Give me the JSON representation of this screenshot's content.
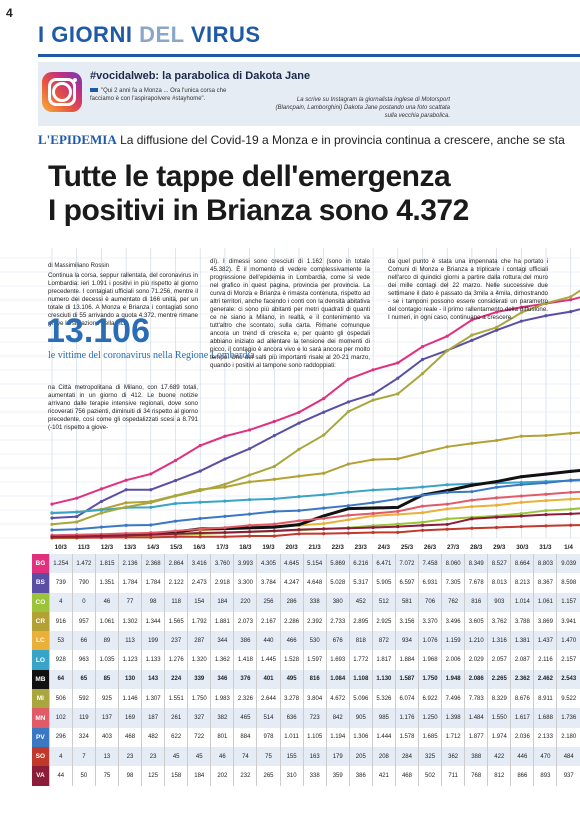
{
  "page_number": "4",
  "section": {
    "part1": "I GIORNI",
    "part2": "DEL",
    "part3": "VIRUS"
  },
  "social": {
    "headline": "#vocidalweb: la parabolica di Dakota Jane",
    "quote": "\"Qui 2 anni fa a Monza ... Ora l'unica corsa che facciamo è con l'aspirapolvere #stayhome\".",
    "caption": "La scrive su Instagram la giornalista inglese di Motorsport (Blancpain, Lamborghini) Dakota Jane postando una foto scattata sulla vecchia parabolica."
  },
  "kicker": {
    "label": "L'EPIDEMIA",
    "text": "La diffusione del Covid-19 a Monza e in provincia continua a crescere, anche se sta rallentando."
  },
  "headline": {
    "line1": "Tutte le tappe dell'emergenza",
    "line2": "I positivi in Brianza sono 4.372"
  },
  "byline": "di Massimiliano Rossin",
  "body": {
    "col1_top": "Continua la corsa, seppur rallentata, del coronavirus in Lombardia: ieri 1.091 i positivi in più rispetto al giorno precedente. I contagiati ufficiali sono 71.256, mentre il numero dei decessi è aumentato di 166 unità, per un totale di 13.106. A Monza e Brianza i contagiati sono cresciuti di 55 arrivando a quota 4.372, mentre rimane grave la situazione della vici-",
    "big_number": "13.106",
    "big_label": "le vittime del coronavirus nella Regione Lombardia",
    "col1_bottom": "na Città metropolitana di Milano, con 17.689 totali, aumentati in un giorno di 412. Le buone notizie arrivano dalle terapie intensive regionali, dove sono ricoverati 756 pazienti, diminuiti di 34 rispetto al giorno precedente, così come gli ospedalizzati scesi a 8.791 (-101 rispetto a giove-",
    "col2": "dì). I dimessi sono cresciuti di 1.162 (sono in totale 45.382). È il momento di vedere complessivamente la progressione dell'epidemia in Lombardia, come si vede nel grafico in quest pagina, provincia per provincia. La curva di Monza e Brianza è rimasta contenuta, rispetto ad altri territori, anche facendo i conti con la densità abitativa generale: ci sono più abitanti per metri quadrati di quanti ce ne siano a Milano, in realtà, e il contenimento va tutt'altro che scontato, sulla carta. Rimane comunque ancora un trend di crescita e, per quanto gli ospedali abbiano iniziato ad allentare la tensione dei momenti di picco, il contagio è ancora vivo e lo sarà ancora per molto tempo. Uno dei salti più importanti risale al 20-21 marzo, quando i positivi al tampone sono raddoppiati:",
    "col3": "da quel punto è stata una impennata che ha portato i Comuni di Monza e Brianza a triplicare i contagi ufficiali nell'arco di quindici giorni a partire dalla rottura del muro dei mille contagi del 22 marzo. Nelle successive due settimane il dato è passato da 3mila a 4mila, dimostrando - se i tamponi possono essere considerati un parametro del contagio reale - il primo rallentamento della diffusione. I numeri, in ogni caso, continuano a crescere."
  },
  "chart_data": {
    "type": "line",
    "categories": [
      "10/3",
      "11/3",
      "12/3",
      "13/3",
      "14/3",
      "15/3",
      "16/3",
      "17/3",
      "18/3",
      "19/3",
      "20/3",
      "21/3",
      "22/3",
      "23/3",
      "24/3",
      "25/3",
      "26/3",
      "27/3",
      "28/3",
      "29/3",
      "30/3",
      "31/3",
      "1/4"
    ],
    "series": [
      {
        "name": "BG",
        "color": "#e0307e",
        "values": [
          1254,
          1472,
          1815,
          2136,
          2368,
          2864,
          3416,
          3760,
          3993,
          4305,
          4645,
          5154,
          5869,
          6216,
          6471,
          7072,
          7458,
          8060,
          8349,
          8527,
          8664,
          8803,
          9039
        ]
      },
      {
        "name": "BS",
        "color": "#5a4fa5",
        "values": [
          739,
          790,
          1351,
          1784,
          1784,
          2122,
          2473,
          2918,
          3300,
          3784,
          4247,
          4648,
          5028,
          5317,
          5905,
          6597,
          6931,
          7305,
          7678,
          8013,
          8213,
          8367,
          8598
        ]
      },
      {
        "name": "CO",
        "color": "#9bc43a",
        "values": [
          4,
          0,
          46,
          77,
          98,
          118,
          154,
          184,
          220,
          256,
          286,
          338,
          380,
          452,
          512,
          581,
          706,
          762,
          816,
          903,
          1014,
          1061,
          1157
        ]
      },
      {
        "name": "CR",
        "color": "#b4a134",
        "values": [
          916,
          957,
          1061,
          1302,
          1344,
          1565,
          1792,
          1881,
          2073,
          2167,
          2286,
          2392,
          2733,
          2895,
          2925,
          3156,
          3370,
          3496,
          3605,
          3762,
          3788,
          3869,
          3941
        ]
      },
      {
        "name": "LC",
        "color": "#eab037",
        "values": [
          53,
          66,
          89,
          113,
          199,
          237,
          287,
          344,
          386,
          440,
          466,
          530,
          676,
          818,
          872,
          934,
          1076,
          1159,
          1210,
          1316,
          1381,
          1437,
          1470
        ]
      },
      {
        "name": "LO",
        "color": "#39a3c8",
        "values": [
          928,
          963,
          1035,
          1123,
          1133,
          1276,
          1320,
          1362,
          1418,
          1445,
          1528,
          1597,
          1693,
          1772,
          1817,
          1884,
          1968,
          2006,
          2029,
          2057,
          2087,
          2116,
          2157
        ]
      },
      {
        "name": "MB",
        "color": "#111111",
        "values": [
          64,
          65,
          85,
          130,
          143,
          224,
          339,
          346,
          376,
          401,
          495,
          816,
          1084,
          1108,
          1130,
          1587,
          1750,
          1948,
          2086,
          2265,
          2362,
          2462,
          2543
        ]
      },
      {
        "name": "MI",
        "color": "#a8a63d",
        "values": [
          506,
          592,
          925,
          1146,
          1307,
          1551,
          1750,
          1983,
          2326,
          2644,
          3278,
          3804,
          4672,
          5096,
          5326,
          6074,
          6922,
          7496,
          7783,
          8329,
          8676,
          8911,
          9522
        ]
      },
      {
        "name": "MN",
        "color": "#e15a67",
        "values": [
          102,
          119,
          137,
          169,
          187,
          261,
          327,
          382,
          465,
          514,
          636,
          723,
          842,
          905,
          985,
          1176,
          1250,
          1398,
          1484,
          1550,
          1617,
          1688,
          1736
        ]
      },
      {
        "name": "PV",
        "color": "#3a78c4",
        "values": [
          296,
          324,
          403,
          468,
          482,
          622,
          722,
          801,
          884,
          978,
          1011,
          1105,
          1194,
          1306,
          1444,
          1578,
          1685,
          1712,
          1877,
          1974,
          2036,
          2133,
          2180
        ]
      },
      {
        "name": "SO",
        "color": "#c0392b",
        "values": [
          4,
          7,
          13,
          23,
          23,
          45,
          45,
          46,
          74,
          75,
          155,
          163,
          179,
          205,
          208,
          284,
          325,
          362,
          388,
          422,
          446,
          470,
          484
        ]
      },
      {
        "name": "VA",
        "color": "#8b1c3a",
        "values": [
          44,
          50,
          75,
          98,
          125,
          158,
          184,
          202,
          232,
          265,
          310,
          338,
          359,
          386,
          421,
          468,
          502,
          711,
          768,
          812,
          866,
          893,
          937
        ]
      }
    ],
    "display": {
      "BG": [
        "1.254",
        "1.472",
        "1.815",
        "2.136",
        "2.368",
        "2.864",
        "3.416",
        "3.760",
        "3.993",
        "4.305",
        "4.645",
        "5.154",
        "5.869",
        "6.216",
        "6.471",
        "7.072",
        "7.458",
        "8.060",
        "8.349",
        "8.527",
        "8.664",
        "8.803",
        "9.039"
      ],
      "BS": [
        "739",
        "790",
        "1.351",
        "1.784",
        "1.784",
        "2.122",
        "2.473",
        "2.918",
        "3.300",
        "3.784",
        "4.247",
        "4.648",
        "5.028",
        "5.317",
        "5.905",
        "6.597",
        "6.931",
        "7.305",
        "7.678",
        "8.013",
        "8.213",
        "8.367",
        "8.598"
      ],
      "CO": [
        "4",
        "0",
        "46",
        "77",
        "98",
        "118",
        "154",
        "184",
        "220",
        "256",
        "286",
        "338",
        "380",
        "452",
        "512",
        "581",
        "706",
        "762",
        "816",
        "903",
        "1.014",
        "1.061",
        "1.157"
      ],
      "CR": [
        "916",
        "957",
        "1.061",
        "1.302",
        "1.344",
        "1.565",
        "1.792",
        "1.881",
        "2.073",
        "2.167",
        "2.286",
        "2.392",
        "2.733",
        "2.895",
        "2.925",
        "3.156",
        "3.370",
        "3.496",
        "3.605",
        "3.762",
        "3.788",
        "3.869",
        "3.941"
      ],
      "LC": [
        "53",
        "66",
        "89",
        "113",
        "199",
        "237",
        "287",
        "344",
        "386",
        "440",
        "466",
        "530",
        "676",
        "818",
        "872",
        "934",
        "1.076",
        "1.159",
        "1.210",
        "1.316",
        "1.381",
        "1.437",
        "1.470"
      ],
      "LO": [
        "928",
        "963",
        "1.035",
        "1.123",
        "1.133",
        "1.276",
        "1.320",
        "1.362",
        "1.418",
        "1.445",
        "1.528",
        "1.597",
        "1.693",
        "1.772",
        "1.817",
        "1.884",
        "1.968",
        "2.006",
        "2.029",
        "2.057",
        "2.087",
        "2.116",
        "2.157"
      ],
      "MB": [
        "64",
        "65",
        "85",
        "130",
        "143",
        "224",
        "339",
        "346",
        "376",
        "401",
        "495",
        "816",
        "1.084",
        "1.108",
        "1.130",
        "1.587",
        "1.750",
        "1.948",
        "2.086",
        "2.265",
        "2.362",
        "2.462",
        "2.543"
      ],
      "MI": [
        "506",
        "592",
        "925",
        "1.146",
        "1.307",
        "1.551",
        "1.750",
        "1.983",
        "2.326",
        "2.644",
        "3.278",
        "3.804",
        "4.672",
        "5.096",
        "5.326",
        "6.074",
        "6.922",
        "7.496",
        "7.783",
        "8.329",
        "8.676",
        "8.911",
        "9.522"
      ],
      "MN": [
        "102",
        "119",
        "137",
        "169",
        "187",
        "261",
        "327",
        "382",
        "465",
        "514",
        "636",
        "723",
        "842",
        "905",
        "985",
        "1.176",
        "1.250",
        "1.398",
        "1.484",
        "1.550",
        "1.617",
        "1.688",
        "1.736"
      ],
      "PV": [
        "296",
        "324",
        "403",
        "468",
        "482",
        "622",
        "722",
        "801",
        "884",
        "978",
        "1.011",
        "1.105",
        "1.194",
        "1.306",
        "1.444",
        "1.578",
        "1.685",
        "1.712",
        "1.877",
        "1.974",
        "2.036",
        "2.133",
        "2.180"
      ],
      "SO": [
        "4",
        "7",
        "13",
        "23",
        "23",
        "45",
        "45",
        "46",
        "74",
        "75",
        "155",
        "163",
        "179",
        "205",
        "208",
        "284",
        "325",
        "362",
        "388",
        "422",
        "446",
        "470",
        "484"
      ],
      "VA": [
        "44",
        "50",
        "75",
        "98",
        "125",
        "158",
        "184",
        "202",
        "232",
        "265",
        "310",
        "338",
        "359",
        "386",
        "421",
        "468",
        "502",
        "711",
        "768",
        "812",
        "866",
        "893",
        "937"
      ]
    },
    "ylim": [
      0,
      10000
    ],
    "grid": true,
    "legend": "table-below"
  }
}
